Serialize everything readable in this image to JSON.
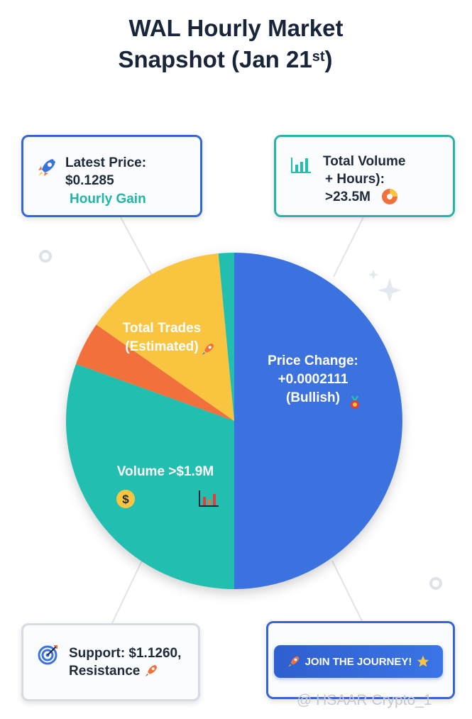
{
  "title": {
    "line1": "WAL Hourly Market",
    "line2_main": "Snapshot (Jan 21",
    "line2_sup": "st",
    "line2_end": ")"
  },
  "cards": {
    "price": {
      "line1": "Latest Price:",
      "line2": "$0.1285",
      "line3": "Hourly Gain"
    },
    "volume": {
      "line1": "Total Volume",
      "line2": "+ Hours):",
      "line3": ">23.5M"
    },
    "support": {
      "line1": "Support: $1.1260,",
      "line2": "Resistance"
    },
    "join": {
      "button": "JOIN THE JOURNEY!"
    }
  },
  "watermark": "@ HSAAR Crypto_1",
  "colors": {
    "blue": "#3a72e0",
    "teal": "#22bfb0",
    "yellow": "#f9c440",
    "orange": "#f2703a"
  },
  "chart_data": {
    "type": "pie",
    "title": "WAL Hourly Market Snapshot (Jan 21st)",
    "slices": [
      {
        "label": "Price Change: +0.0002111 (Bullish)",
        "lines": [
          "Price Change:",
          "+0.0002111",
          "(Bullish)"
        ],
        "value": 50,
        "color": "#3a72e0"
      },
      {
        "label": "Volume >$1.9M",
        "lines": [
          "Volume >$1.9M"
        ],
        "value": 30.5,
        "color": "#22bfb0"
      },
      {
        "label": "",
        "lines": [],
        "value": 4.2,
        "color": "#f2703a"
      },
      {
        "label": "Total Trades (Estimated)",
        "lines": [
          "Total Trades",
          "(Estimated)"
        ],
        "value": 13.8,
        "color": "#f9c440"
      },
      {
        "label": "",
        "lines": [],
        "value": 1.5,
        "color": "#22bfb0"
      }
    ]
  }
}
